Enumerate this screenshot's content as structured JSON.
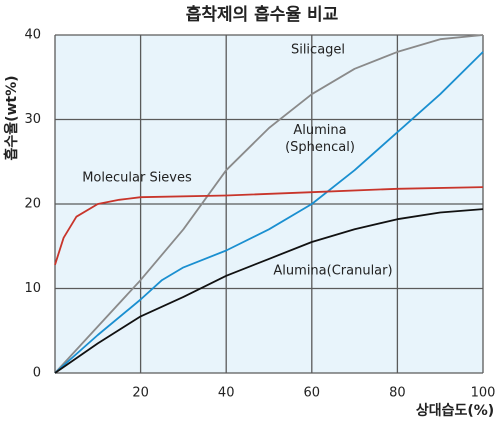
{
  "chart_data": {
    "type": "line",
    "title": "흡착제의 흡수율 비교",
    "x_label": "상대습도(%)",
    "y_label": "흡수율(wt%)",
    "xlim": [
      0,
      100
    ],
    "ylim": [
      0,
      40
    ],
    "xticks": [
      20,
      40,
      60,
      80,
      100
    ],
    "yticks": [
      0,
      10,
      20,
      30,
      40
    ],
    "grid": true,
    "background": "#e8f4fb",
    "grid_color": "#5a5a5a",
    "series": [
      {
        "name": "Silicagel",
        "color": "#8a8a8a",
        "x": [
          0,
          10,
          20,
          30,
          40,
          50,
          60,
          70,
          80,
          90,
          100
        ],
        "values": [
          0,
          5.5,
          11,
          17,
          24,
          29,
          33,
          36,
          38,
          39.5,
          40
        ]
      },
      {
        "name": "Alumina\n(Sphencal)",
        "color": "#1a8fd0",
        "x": [
          0,
          10,
          20,
          25,
          30,
          40,
          50,
          60,
          70,
          80,
          90,
          100
        ],
        "values": [
          0,
          4.5,
          8.7,
          11,
          12.5,
          14.5,
          17,
          20,
          24,
          28.5,
          33,
          38
        ]
      },
      {
        "name": "Molecular  Sieves",
        "color": "#c8352b",
        "x": [
          0,
          2,
          5,
          10,
          15,
          20,
          40,
          60,
          80,
          100
        ],
        "values": [
          12.8,
          16,
          18.5,
          20,
          20.5,
          20.8,
          21,
          21.4,
          21.8,
          22
        ]
      },
      {
        "name": "Alumina(Cranular)",
        "color": "#111111",
        "x": [
          0,
          10,
          20,
          30,
          40,
          50,
          60,
          70,
          80,
          90,
          100
        ],
        "values": [
          0,
          3.5,
          6.7,
          9,
          11.5,
          13.5,
          15.5,
          17,
          18.2,
          19,
          19.4
        ]
      }
    ]
  }
}
